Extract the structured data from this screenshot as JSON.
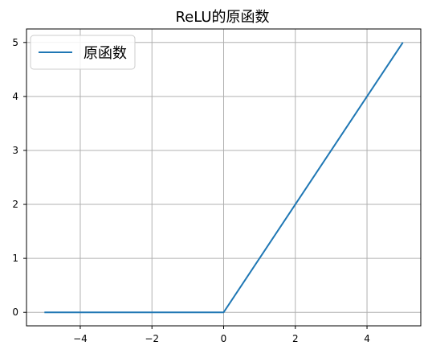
{
  "chart_data": {
    "type": "line",
    "title": "ReLU的原函数",
    "xlabel": "",
    "ylabel": "",
    "xlim": [
      -5.5,
      5.5
    ],
    "ylim": [
      -0.25,
      5.25
    ],
    "xticks": [
      -4,
      -2,
      0,
      2,
      4
    ],
    "yticks": [
      0,
      1,
      2,
      3,
      4,
      5
    ],
    "xtick_labels": [
      "−4",
      "−2",
      "0",
      "2",
      "4"
    ],
    "ytick_labels": [
      "0",
      "1",
      "2",
      "3",
      "4",
      "5"
    ],
    "grid": true,
    "legend_position": "top-left",
    "series": [
      {
        "name": "原函数",
        "color": "#1f77b4",
        "x": [
          -5,
          0,
          5
        ],
        "y": [
          0,
          0,
          5
        ]
      }
    ]
  }
}
